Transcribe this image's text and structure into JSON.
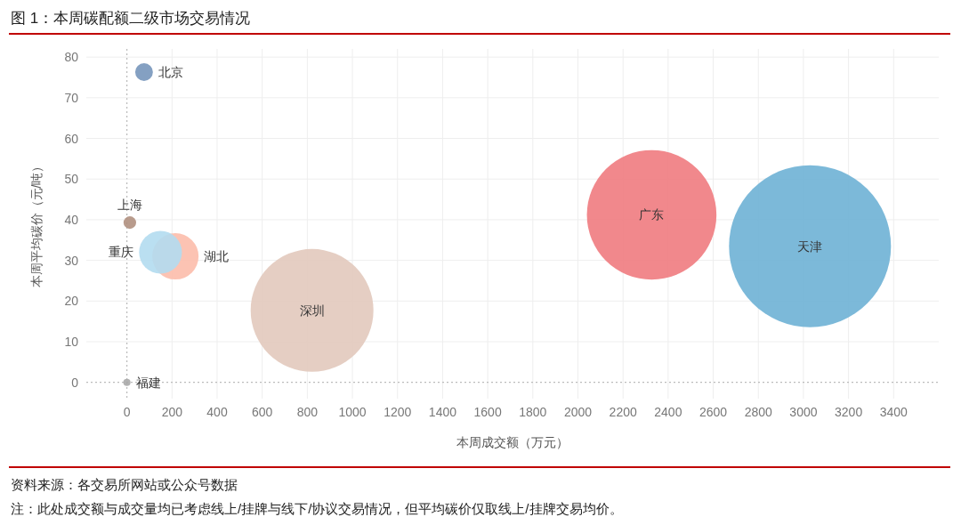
{
  "chart_data": {
    "type": "bubble",
    "title": "图 1：本周碳配额二级市场交易情况",
    "xlabel": "本周成交额（万元）",
    "ylabel": "本周平均碳价（元/吨）",
    "xlim": [
      -180,
      3600
    ],
    "ylim": [
      -4,
      82
    ],
    "xticks": [
      0,
      200,
      400,
      600,
      800,
      1000,
      1200,
      1400,
      1600,
      1800,
      2000,
      2200,
      2400,
      2600,
      2800,
      3000,
      3200,
      3400
    ],
    "yticks": [
      0,
      10,
      20,
      30,
      40,
      50,
      60,
      70,
      80
    ],
    "grid": true,
    "series": [
      {
        "name": "北京",
        "color": "#7796bb",
        "x": [
          76
        ],
        "values": [
          76.3
        ],
        "sizes": [
          0.012
        ]
      },
      {
        "name": "上海",
        "color": "#b09080",
        "x": [
          13
        ],
        "values": [
          39.3
        ],
        "sizes": [
          0.006
        ]
      },
      {
        "name": "重庆",
        "color": "#b3dcf0",
        "x": [
          149
        ],
        "values": [
          32
        ],
        "sizes": [
          0.07
        ]
      },
      {
        "name": "湖北",
        "color": "#fcbcab",
        "x": [
          215
        ],
        "values": [
          31
        ],
        "sizes": [
          0.082
        ]
      },
      {
        "name": "深圳",
        "color": "#e2c9bd",
        "x": [
          821
        ],
        "values": [
          17.7
        ],
        "sizes": [
          0.575
        ]
      },
      {
        "name": "广东",
        "color": "#f07b80",
        "x": [
          2327
        ],
        "values": [
          41.2
        ],
        "sizes": [
          0.64
        ]
      },
      {
        "name": "天津",
        "color": "#6eb1d5",
        "x": [
          3029
        ],
        "values": [
          33.5
        ],
        "sizes": [
          1
        ]
      },
      {
        "name": "福建",
        "color": "#a9a9a9",
        "x": [
          0
        ],
        "values": [
          0
        ],
        "sizes": [
          0.002
        ]
      }
    ],
    "annotations": [
      "资料来源：各交易所网站或公众号数据",
      "注：此处成交额与成交量均已考虑线上/挂牌与线下/协议交易情况，但平均碳价仅取线上/挂牌交易均价。"
    ]
  }
}
